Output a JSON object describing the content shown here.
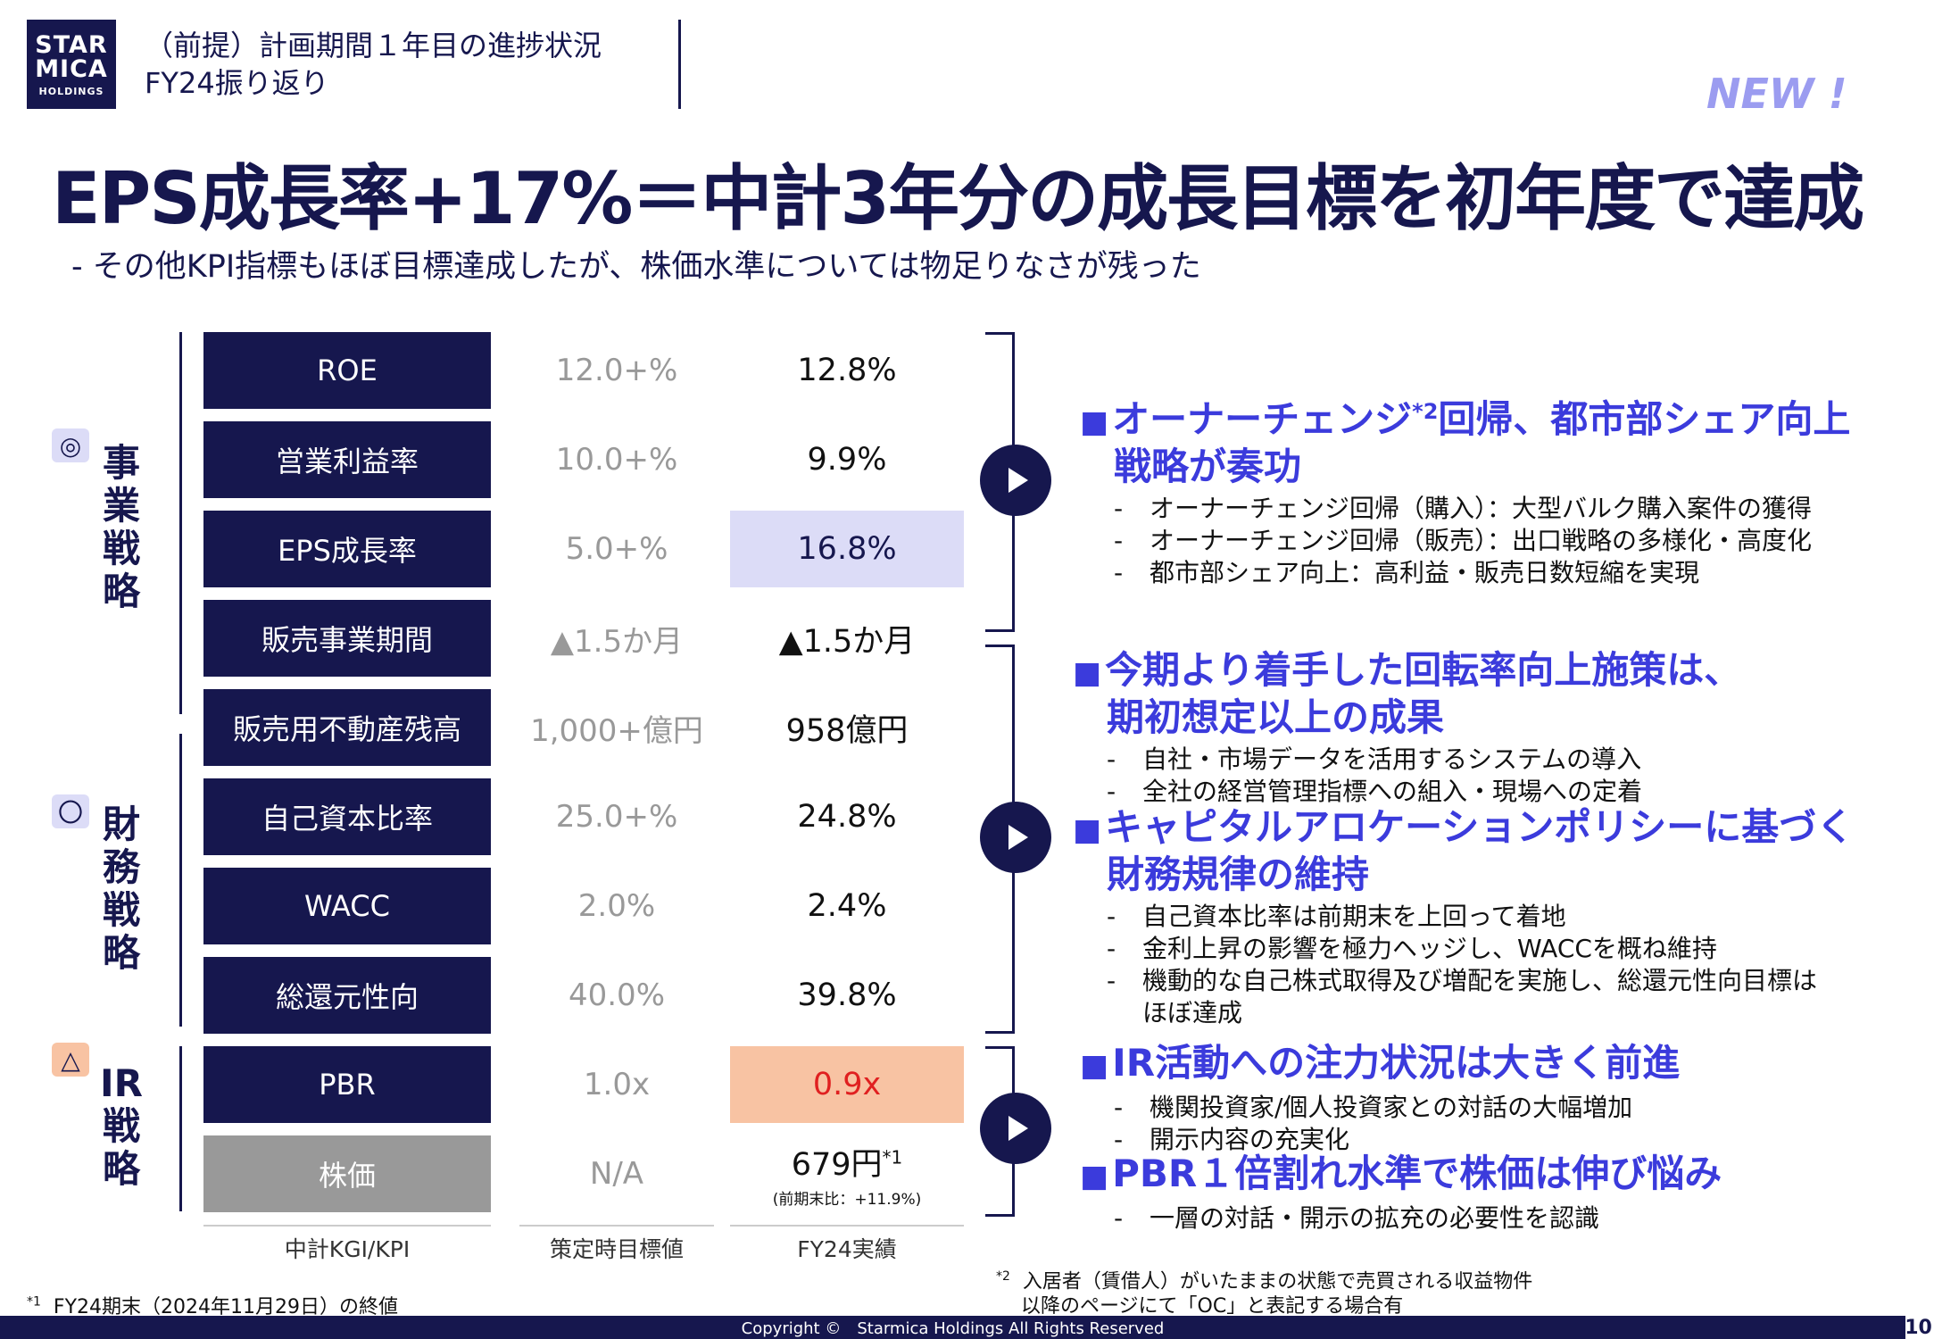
{
  "logo": {
    "line1": "STAR",
    "line2": "MICA",
    "line3": "HOLDINGS"
  },
  "header": {
    "line1": "（前提）計画期間１年目の進捗状況",
    "line2": "FY24振り返り"
  },
  "badge": "NEW !",
  "title": "EPS成長率+17%＝中計3年分の成長目標を初年度で達成",
  "subtitle": "-  その他KPI指標もほぼ目標達成したが、株価水準については物足りなさが残った",
  "categories": [
    {
      "icon": "◎",
      "name": "事業戦略"
    },
    {
      "icon": "〇",
      "name": "財務戦略"
    },
    {
      "icon": "△",
      "name": "IR戦略"
    }
  ],
  "rows": [
    {
      "label": "ROE",
      "target": "12.0+%",
      "actual": "12.8%"
    },
    {
      "label": "営業利益率",
      "target": "10.0+%",
      "actual": "9.9%"
    },
    {
      "label": "EPS成長率",
      "target": "5.0+%",
      "actual": "16.8%"
    },
    {
      "label": "販売事業期間",
      "target": "▲1.5か月",
      "actual": "▲1.5か月"
    },
    {
      "label": "販売用不動産残高",
      "target": "1,000+億円",
      "actual": "958億円"
    },
    {
      "label": "自己資本比率",
      "target": "25.0+%",
      "actual": "24.8%"
    },
    {
      "label": "WACC",
      "target": "2.0%",
      "actual": "2.4%"
    },
    {
      "label": "総還元性向",
      "target": "40.0%",
      "actual": "39.8%"
    },
    {
      "label": "PBR",
      "target": "1.0x",
      "actual": "0.9x"
    },
    {
      "label": "株価",
      "target": "N/A",
      "actual": "679円",
      "actual_sup": "*1",
      "actual_note": "(前期末比：+11.9%)"
    }
  ],
  "column_headers": [
    "中計KGI/KPI",
    "策定時目標値",
    "FY24実績"
  ],
  "sections": [
    {
      "heading_line1": "オーナーチェンジ",
      "heading_sup": "*2",
      "heading_line1b": "回帰、都市部シェア向上",
      "heading_line2": "戦略が奏功",
      "bullets": [
        "オーナーチェンジ回帰（購入）：大型バルク購入案件の獲得",
        "オーナーチェンジ回帰（販売）：出口戦略の多様化・高度化",
        "都市部シェア向上：高利益・販売日数短縮を実現"
      ]
    },
    {
      "heading_line1": "今期より着手した回転率向上施策は、",
      "heading_line2": "期初想定以上の成果",
      "bullets": [
        "自社・市場データを活用するシステムの導入",
        "全社の経営管理指標への組入・現場への定着"
      ]
    },
    {
      "heading_line1": "キャピタルアロケーションポリシーに基づく",
      "heading_line2": "財務規律の維持",
      "bullets": [
        "自己資本比率は前期末を上回って着地",
        "金利上昇の影響を極力ヘッジし、WACCを概ね維持",
        "機動的な自己株式取得及び増配を実施し、総還元性向目標は"
      ],
      "bullet_cont": "ほぼ達成"
    },
    {
      "heading_line1": "IR活動への注力状況は大きく前進",
      "bullets": [
        "機関投資家/個人投資家との対話の大幅増加",
        "開示内容の充実化"
      ]
    },
    {
      "heading_line1": "PBR１倍割れ水準で株価は伸び悩み",
      "bullets": [
        "一層の対話・開示の拡充の必要性を認識"
      ]
    }
  ],
  "footnotes": {
    "fn1_mark": "*1",
    "fn1": "FY24期末（2024年11月29日）の終値",
    "fn2_mark": "*2",
    "fn2_line1": "入居者（賃借人）がいたままの状態で売買される収益物件",
    "fn2_line2": "以降のページにて「OC」と表記する場合有"
  },
  "copyright": "Copyright ©　Starmica Holdings All Rights Reserved",
  "page_number": "10"
}
